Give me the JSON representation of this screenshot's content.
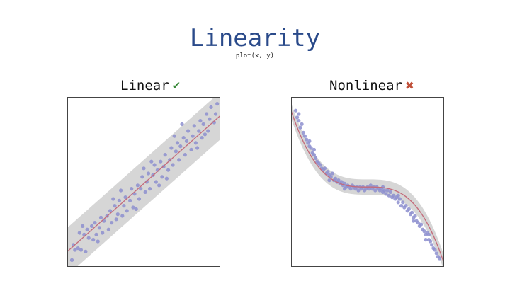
{
  "header": {
    "title": "Linearity",
    "subtitle": "plot(x, y)"
  },
  "colors": {
    "title": "#2a4a8a",
    "points": "#8d8fcf",
    "fit_line": "#c46a7a",
    "band": "#d6d6d6",
    "check": "#3a8a3a",
    "cross": "#c0503a"
  },
  "chart_data": [
    {
      "type": "scatter",
      "title": "Linear",
      "status_icon": "check-icon",
      "status_glyph": "✔",
      "xlim": [
        0,
        1
      ],
      "ylim": [
        0,
        1
      ],
      "xlabel": "",
      "ylabel": "",
      "grid": false,
      "fit": {
        "kind": "linear",
        "intercept": 0.09,
        "slope": 0.8
      },
      "band_halfwidth": 0.14,
      "series": [
        {
          "points": [
            [
              0.03,
              0.04
            ],
            [
              0.04,
              0.13
            ],
            [
              0.05,
              0.1
            ],
            [
              0.07,
              0.11
            ],
            [
              0.08,
              0.2
            ],
            [
              0.09,
              0.1
            ],
            [
              0.11,
              0.19
            ],
            [
              0.12,
              0.09
            ],
            [
              0.13,
              0.22
            ],
            [
              0.14,
              0.17
            ],
            [
              0.16,
              0.24
            ],
            [
              0.17,
              0.16
            ],
            [
              0.18,
              0.26
            ],
            [
              0.19,
              0.19
            ],
            [
              0.21,
              0.23
            ],
            [
              0.22,
              0.29
            ],
            [
              0.23,
              0.2
            ],
            [
              0.24,
              0.27
            ],
            [
              0.26,
              0.3
            ],
            [
              0.27,
              0.22
            ],
            [
              0.28,
              0.33
            ],
            [
              0.29,
              0.26
            ],
            [
              0.31,
              0.36
            ],
            [
              0.32,
              0.28
            ],
            [
              0.33,
              0.31
            ],
            [
              0.34,
              0.39
            ],
            [
              0.36,
              0.3
            ],
            [
              0.37,
              0.36
            ],
            [
              0.38,
              0.41
            ],
            [
              0.39,
              0.33
            ],
            [
              0.41,
              0.39
            ],
            [
              0.42,
              0.46
            ],
            [
              0.43,
              0.35
            ],
            [
              0.44,
              0.43
            ],
            [
              0.46,
              0.48
            ],
            [
              0.47,
              0.4
            ],
            [
              0.48,
              0.46
            ],
            [
              0.49,
              0.53
            ],
            [
              0.51,
              0.44
            ],
            [
              0.52,
              0.5
            ],
            [
              0.53,
              0.55
            ],
            [
              0.54,
              0.46
            ],
            [
              0.56,
              0.54
            ],
            [
              0.57,
              0.6
            ],
            [
              0.58,
              0.5
            ],
            [
              0.59,
              0.57
            ],
            [
              0.61,
              0.62
            ],
            [
              0.62,
              0.53
            ],
            [
              0.63,
              0.59
            ],
            [
              0.64,
              0.66
            ],
            [
              0.66,
              0.57
            ],
            [
              0.67,
              0.63
            ],
            [
              0.68,
              0.7
            ],
            [
              0.69,
              0.6
            ],
            [
              0.71,
              0.68
            ],
            [
              0.72,
              0.73
            ],
            [
              0.73,
              0.63
            ],
            [
              0.74,
              0.71
            ],
            [
              0.76,
              0.76
            ],
            [
              0.77,
              0.66
            ],
            [
              0.78,
              0.74
            ],
            [
              0.79,
              0.8
            ],
            [
              0.81,
              0.69
            ],
            [
              0.82,
              0.77
            ],
            [
              0.83,
              0.83
            ],
            [
              0.84,
              0.73
            ],
            [
              0.86,
              0.8
            ],
            [
              0.87,
              0.86
            ],
            [
              0.88,
              0.76
            ],
            [
              0.89,
              0.84
            ],
            [
              0.91,
              0.9
            ],
            [
              0.92,
              0.8
            ],
            [
              0.93,
              0.87
            ],
            [
              0.94,
              0.94
            ],
            [
              0.96,
              0.85
            ],
            [
              0.97,
              0.9
            ],
            [
              0.98,
              0.96
            ],
            [
              0.2,
              0.15
            ],
            [
              0.35,
              0.45
            ],
            [
              0.45,
              0.34
            ],
            [
              0.55,
              0.62
            ],
            [
              0.65,
              0.52
            ],
            [
              0.75,
              0.84
            ],
            [
              0.85,
              0.7
            ],
            [
              0.6,
              0.48
            ],
            [
              0.3,
              0.4
            ],
            [
              0.5,
              0.58
            ],
            [
              0.7,
              0.77
            ],
            [
              0.9,
              0.78
            ],
            [
              0.1,
              0.24
            ]
          ]
        }
      ]
    },
    {
      "type": "scatter",
      "title": "Nonlinear",
      "status_icon": "cross-icon",
      "status_glyph": "✖",
      "xlim": [
        0,
        1
      ],
      "ylim": [
        0,
        1
      ],
      "xlabel": "",
      "ylabel": "",
      "grid": false,
      "fit": {
        "kind": "cubic",
        "center": 0.5,
        "level": 0.47,
        "coef": 3.6
      },
      "band_halfwidth": 0.045,
      "series": [
        {
          "points": [
            [
              0.03,
              0.92
            ],
            [
              0.04,
              0.88
            ],
            [
              0.05,
              0.86
            ],
            [
              0.06,
              0.82
            ],
            [
              0.07,
              0.84
            ],
            [
              0.08,
              0.79
            ],
            [
              0.09,
              0.77
            ],
            [
              0.1,
              0.75
            ],
            [
              0.11,
              0.73
            ],
            [
              0.12,
              0.71
            ],
            [
              0.13,
              0.7
            ],
            [
              0.14,
              0.67
            ],
            [
              0.15,
              0.66
            ],
            [
              0.16,
              0.64
            ],
            [
              0.17,
              0.62
            ],
            [
              0.18,
              0.61
            ],
            [
              0.19,
              0.6
            ],
            [
              0.2,
              0.58
            ],
            [
              0.21,
              0.57
            ],
            [
              0.22,
              0.58
            ],
            [
              0.23,
              0.55
            ],
            [
              0.24,
              0.56
            ],
            [
              0.25,
              0.54
            ],
            [
              0.26,
              0.53
            ],
            [
              0.27,
              0.55
            ],
            [
              0.28,
              0.51
            ],
            [
              0.29,
              0.52
            ],
            [
              0.3,
              0.5
            ],
            [
              0.31,
              0.51
            ],
            [
              0.32,
              0.49
            ],
            [
              0.33,
              0.5
            ],
            [
              0.34,
              0.48
            ],
            [
              0.35,
              0.49
            ],
            [
              0.36,
              0.47
            ],
            [
              0.37,
              0.48
            ],
            [
              0.38,
              0.47
            ],
            [
              0.39,
              0.46
            ],
            [
              0.4,
              0.48
            ],
            [
              0.41,
              0.47
            ],
            [
              0.42,
              0.46
            ],
            [
              0.43,
              0.47
            ],
            [
              0.44,
              0.45
            ],
            [
              0.45,
              0.47
            ],
            [
              0.46,
              0.46
            ],
            [
              0.47,
              0.47
            ],
            [
              0.48,
              0.45
            ],
            [
              0.49,
              0.46
            ],
            [
              0.5,
              0.47
            ],
            [
              0.51,
              0.46
            ],
            [
              0.52,
              0.48
            ],
            [
              0.53,
              0.46
            ],
            [
              0.54,
              0.47
            ],
            [
              0.55,
              0.45
            ],
            [
              0.56,
              0.47
            ],
            [
              0.57,
              0.46
            ],
            [
              0.58,
              0.45
            ],
            [
              0.59,
              0.46
            ],
            [
              0.6,
              0.44
            ],
            [
              0.61,
              0.45
            ],
            [
              0.62,
              0.43
            ],
            [
              0.63,
              0.45
            ],
            [
              0.64,
              0.42
            ],
            [
              0.65,
              0.44
            ],
            [
              0.66,
              0.41
            ],
            [
              0.67,
              0.42
            ],
            [
              0.68,
              0.4
            ],
            [
              0.69,
              0.41
            ],
            [
              0.7,
              0.38
            ],
            [
              0.71,
              0.4
            ],
            [
              0.72,
              0.36
            ],
            [
              0.73,
              0.38
            ],
            [
              0.74,
              0.35
            ],
            [
              0.75,
              0.36
            ],
            [
              0.76,
              0.33
            ],
            [
              0.77,
              0.34
            ],
            [
              0.78,
              0.31
            ],
            [
              0.79,
              0.32
            ],
            [
              0.8,
              0.29
            ],
            [
              0.81,
              0.3
            ],
            [
              0.82,
              0.27
            ],
            [
              0.83,
              0.26
            ],
            [
              0.84,
              0.24
            ],
            [
              0.85,
              0.25
            ],
            [
              0.86,
              0.22
            ],
            [
              0.87,
              0.21
            ],
            [
              0.88,
              0.19
            ],
            [
              0.89,
              0.2
            ],
            [
              0.9,
              0.16
            ],
            [
              0.91,
              0.15
            ],
            [
              0.92,
              0.13
            ],
            [
              0.93,
              0.11
            ],
            [
              0.94,
              0.1
            ],
            [
              0.95,
              0.08
            ],
            [
              0.96,
              0.06
            ],
            [
              0.97,
              0.05
            ],
            [
              0.05,
              0.9
            ],
            [
              0.15,
              0.69
            ],
            [
              0.25,
              0.51
            ],
            [
              0.35,
              0.46
            ],
            [
              0.6,
              0.47
            ],
            [
              0.7,
              0.42
            ],
            [
              0.8,
              0.27
            ],
            [
              0.9,
              0.19
            ],
            [
              0.12,
              0.74
            ],
            [
              0.88,
              0.16
            ]
          ]
        }
      ]
    }
  ]
}
